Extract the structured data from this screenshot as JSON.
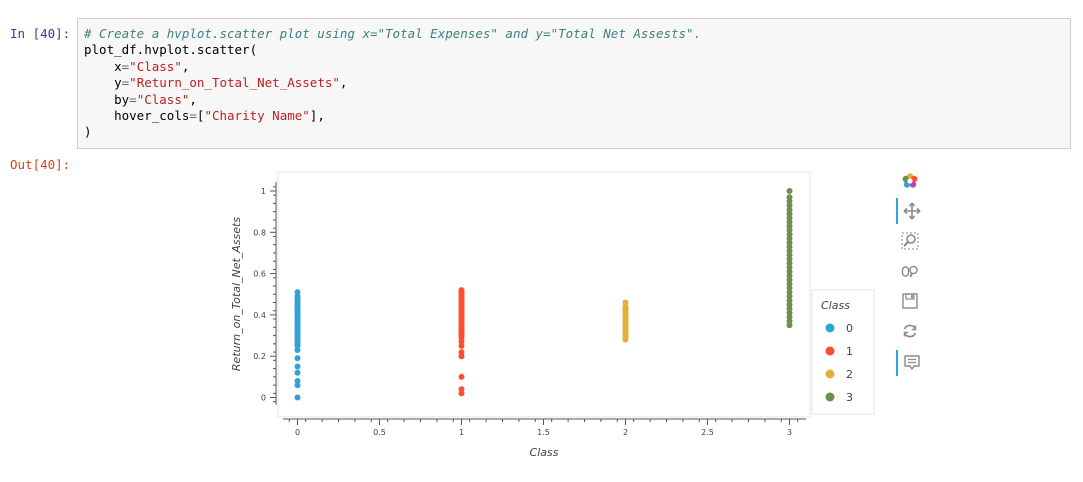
{
  "notebook": {
    "in_prompt": "In [40]:",
    "out_prompt": "Out[40]:",
    "code": {
      "comment": "# Create a hvplot.scatter plot using x=\"Total Expenses\" and y=\"Total Net Assests\".",
      "call": "plot_df.hvplot.scatter(",
      "x_kw": "x",
      "x_val": "\"Class\"",
      "y_kw": "y",
      "y_val": "\"Return_on_Total_Net_Assets\"",
      "by_kw": "by",
      "by_val": "\"Class\"",
      "hover_kw": "hover_cols",
      "hover_val": "\"Charity Name\"",
      "close": ")"
    }
  },
  "toolbar": {
    "tools": [
      {
        "name": "bokeh-logo-icon",
        "active": false
      },
      {
        "name": "pan-icon",
        "active": true
      },
      {
        "name": "box-zoom-icon",
        "active": false
      },
      {
        "name": "wheel-zoom-icon",
        "active": false
      },
      {
        "name": "save-icon",
        "active": false
      },
      {
        "name": "reset-icon",
        "active": false
      },
      {
        "name": "hover-icon",
        "active": true
      }
    ]
  },
  "chart_data": {
    "type": "scatter",
    "title": "",
    "xlabel": "Class",
    "ylabel": "Return_on_Total_Net_Assets",
    "xlim": [
      -0.1,
      3.1
    ],
    "ylim": [
      -0.02,
      1.08
    ],
    "x_ticks": [
      "0",
      "0.5",
      "1",
      "1.5",
      "2",
      "2.5",
      "3"
    ],
    "x_tick_values": [
      0,
      0.5,
      1,
      1.5,
      2,
      2.5,
      3
    ],
    "y_ticks": [
      "0",
      "0.2",
      "0.4",
      "0.6",
      "0.8",
      "1"
    ],
    "y_tick_values": [
      0,
      0.2,
      0.4,
      0.6,
      0.8,
      1
    ],
    "grid": false,
    "legend_title": "Class",
    "legend_position": "right",
    "series": [
      {
        "name": "0",
        "color": "#30a2da",
        "x": 0,
        "y": [
          0.0,
          0.06,
          0.08,
          0.12,
          0.15,
          0.19,
          0.23,
          0.25,
          0.26,
          0.27,
          0.28,
          0.29,
          0.3,
          0.31,
          0.32,
          0.33,
          0.34,
          0.35,
          0.36,
          0.37,
          0.38,
          0.39,
          0.4,
          0.41,
          0.42,
          0.43,
          0.44,
          0.45,
          0.46,
          0.47,
          0.48,
          0.49,
          0.51
        ]
      },
      {
        "name": "1",
        "color": "#fc4f30",
        "x": 1,
        "y": [
          0.02,
          0.04,
          0.1,
          0.2,
          0.22,
          0.25,
          0.27,
          0.29,
          0.3,
          0.31,
          0.32,
          0.33,
          0.34,
          0.35,
          0.36,
          0.37,
          0.38,
          0.39,
          0.4,
          0.41,
          0.42,
          0.43,
          0.44,
          0.45,
          0.46,
          0.47,
          0.48,
          0.49,
          0.5,
          0.51,
          0.52
        ]
      },
      {
        "name": "2",
        "color": "#e5ae38",
        "x": 2,
        "y": [
          0.28,
          0.29,
          0.3,
          0.31,
          0.32,
          0.33,
          0.34,
          0.35,
          0.36,
          0.37,
          0.38,
          0.39,
          0.4,
          0.41,
          0.42,
          0.43,
          0.44,
          0.46
        ]
      },
      {
        "name": "3",
        "color": "#6d904f",
        "x": 3,
        "y": [
          0.35,
          0.37,
          0.39,
          0.41,
          0.43,
          0.45,
          0.47,
          0.49,
          0.51,
          0.53,
          0.55,
          0.57,
          0.59,
          0.61,
          0.63,
          0.65,
          0.67,
          0.69,
          0.71,
          0.73,
          0.75,
          0.77,
          0.79,
          0.81,
          0.83,
          0.85,
          0.87,
          0.89,
          0.91,
          0.93,
          0.95,
          0.97,
          1.0
        ]
      }
    ]
  }
}
